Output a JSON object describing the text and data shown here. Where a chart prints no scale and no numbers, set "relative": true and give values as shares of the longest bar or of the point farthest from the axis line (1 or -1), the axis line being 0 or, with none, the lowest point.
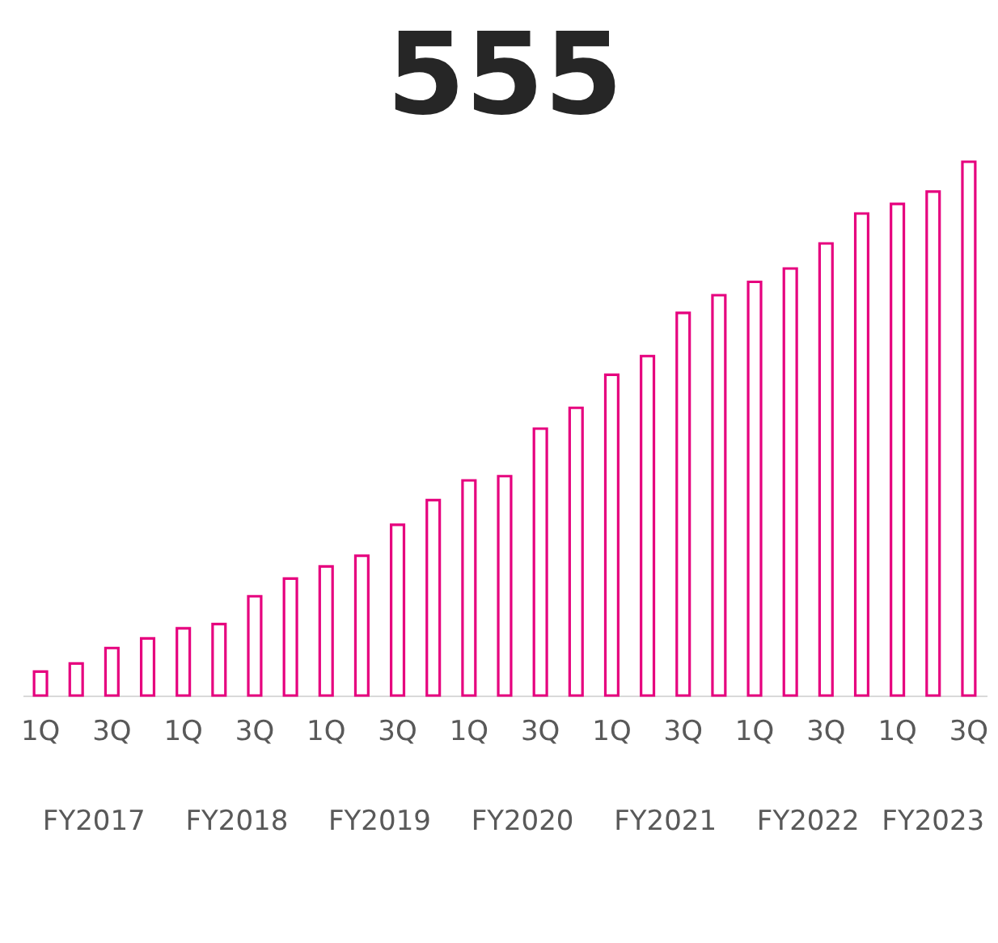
{
  "chart_data": {
    "type": "bar",
    "title": "555",
    "relative": true,
    "categories": [
      "1Q",
      null,
      "3Q",
      null,
      "1Q",
      null,
      "3Q",
      null,
      "1Q",
      null,
      "3Q",
      null,
      "1Q",
      null,
      "3Q",
      null,
      "1Q",
      null,
      "3Q",
      null,
      "1Q",
      null,
      "3Q",
      null,
      "1Q",
      null,
      "3Q"
    ],
    "values": [
      0.045,
      0.06,
      0.089,
      0.107,
      0.126,
      0.134,
      0.186,
      0.219,
      0.242,
      0.262,
      0.32,
      0.366,
      0.403,
      0.411,
      0.5,
      0.539,
      0.601,
      0.636,
      0.717,
      0.75,
      0.775,
      0.8,
      0.847,
      0.903,
      0.921,
      0.944,
      1
    ],
    "color": "#e6007e",
    "annotations": [
      "FY2017",
      "FY2018",
      "FY2019",
      "FY2020",
      "FY2021",
      "FY2022",
      "FY2023"
    ]
  }
}
